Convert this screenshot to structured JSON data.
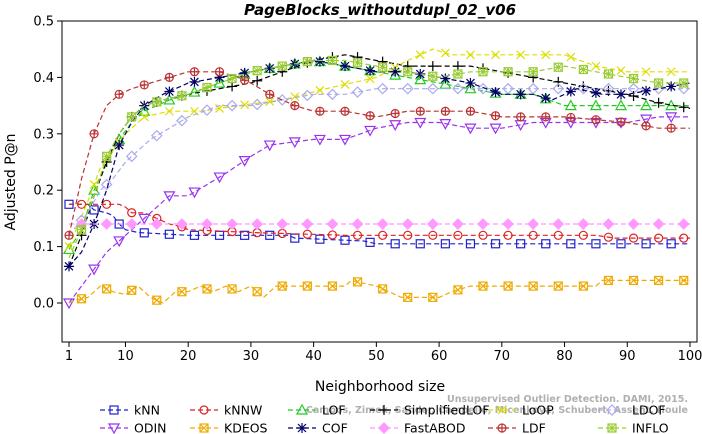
{
  "chart_data": {
    "type": "line",
    "title": "PageBlocks_withoutdupl_02_v06",
    "xlabel": "Neighborhood size",
    "ylabel": "Adjusted P@n",
    "xlim": [
      1,
      100
    ],
    "ylim": [
      -0.02,
      0.5
    ],
    "x_ticks": [
      1,
      10,
      20,
      30,
      40,
      50,
      60,
      70,
      80,
      90,
      100
    ],
    "y_ticks": [
      0.0,
      0.1,
      0.2,
      0.3,
      0.4,
      0.5
    ],
    "x_tick_labels": [
      "1",
      "10",
      "20",
      "30",
      "40",
      "50",
      "60",
      "70",
      "80",
      "90",
      "100"
    ],
    "y_tick_labels": [
      "0.0",
      "0.1",
      "0.2",
      "0.3",
      "0.4",
      "0.5"
    ],
    "grid": false,
    "legend_position": "bottom",
    "credit": [
      "Campos, Zimek, Sander, Campello, Micenkova, Schubert, Assent, Houle",
      "Unsupervised Outlier Detection. DAMI, 2015."
    ],
    "series": [
      {
        "name": "kNN",
        "color": "#2222cc",
        "marker": "square",
        "dash": "dash",
        "points": [
          [
            1,
            0.175
          ],
          [
            4,
            0.175
          ],
          [
            5,
            0.165
          ],
          [
            7,
            0.16
          ],
          [
            8,
            0.155
          ],
          [
            9,
            0.14
          ],
          [
            10,
            0.13
          ],
          [
            12,
            0.125
          ],
          [
            20,
            0.12
          ],
          [
            36,
            0.12
          ],
          [
            37,
            0.115
          ],
          [
            48,
            0.11
          ],
          [
            50,
            0.105
          ],
          [
            100,
            0.105
          ]
        ]
      },
      {
        "name": "kNNW",
        "color": "#dd2222",
        "marker": "circle",
        "dash": "dash",
        "points": [
          [
            1,
            0.175
          ],
          [
            6,
            0.175
          ],
          [
            9,
            0.175
          ],
          [
            10,
            0.17
          ],
          [
            11,
            0.16
          ],
          [
            13,
            0.16
          ],
          [
            15,
            0.15
          ],
          [
            17,
            0.14
          ],
          [
            19,
            0.135
          ],
          [
            20,
            0.13
          ],
          [
            30,
            0.125
          ],
          [
            45,
            0.12
          ],
          [
            60,
            0.12
          ],
          [
            85,
            0.12
          ],
          [
            88,
            0.115
          ],
          [
            100,
            0.115
          ]
        ]
      },
      {
        "name": "LOF",
        "color": "#22cc22",
        "marker": "triangle",
        "dash": "dash",
        "points": [
          [
            1,
            0.095
          ],
          [
            3,
            0.13
          ],
          [
            5,
            0.2
          ],
          [
            7,
            0.25
          ],
          [
            9,
            0.29
          ],
          [
            11,
            0.32
          ],
          [
            13,
            0.34
          ],
          [
            15,
            0.35
          ],
          [
            17,
            0.36
          ],
          [
            20,
            0.37
          ],
          [
            25,
            0.39
          ],
          [
            30,
            0.41
          ],
          [
            35,
            0.42
          ],
          [
            40,
            0.43
          ],
          [
            45,
            0.42
          ],
          [
            50,
            0.41
          ],
          [
            55,
            0.4
          ],
          [
            60,
            0.39
          ],
          [
            65,
            0.38
          ],
          [
            70,
            0.37
          ],
          [
            75,
            0.37
          ],
          [
            80,
            0.35
          ],
          [
            90,
            0.35
          ],
          [
            100,
            0.35
          ]
        ]
      },
      {
        "name": "SimplifiedLOF",
        "color": "#000000",
        "marker": "plus",
        "dash": "dash",
        "points": [
          [
            1,
            0.065
          ],
          [
            3,
            0.12
          ],
          [
            5,
            0.19
          ],
          [
            7,
            0.25
          ],
          [
            9,
            0.3
          ],
          [
            11,
            0.33
          ],
          [
            13,
            0.35
          ],
          [
            16,
            0.36
          ],
          [
            20,
            0.37
          ],
          [
            25,
            0.38
          ],
          [
            30,
            0.39
          ],
          [
            35,
            0.41
          ],
          [
            40,
            0.43
          ],
          [
            45,
            0.44
          ],
          [
            50,
            0.43
          ],
          [
            55,
            0.42
          ],
          [
            60,
            0.42
          ],
          [
            65,
            0.42
          ],
          [
            70,
            0.41
          ],
          [
            75,
            0.4
          ],
          [
            80,
            0.39
          ],
          [
            85,
            0.38
          ],
          [
            90,
            0.37
          ],
          [
            95,
            0.355
          ],
          [
            100,
            0.345
          ]
        ]
      },
      {
        "name": "LoOP",
        "color": "#dddd00",
        "marker": "x",
        "dash": "dash",
        "points": [
          [
            1,
            0.1
          ],
          [
            4,
            0.18
          ],
          [
            6,
            0.24
          ],
          [
            8,
            0.27
          ],
          [
            10,
            0.3
          ],
          [
            13,
            0.33
          ],
          [
            17,
            0.34
          ],
          [
            22,
            0.34
          ],
          [
            28,
            0.35
          ],
          [
            35,
            0.36
          ],
          [
            42,
            0.38
          ],
          [
            50,
            0.4
          ],
          [
            55,
            0.43
          ],
          [
            59,
            0.45
          ],
          [
            62,
            0.44
          ],
          [
            70,
            0.44
          ],
          [
            80,
            0.44
          ],
          [
            85,
            0.42
          ],
          [
            90,
            0.41
          ],
          [
            100,
            0.41
          ]
        ]
      },
      {
        "name": "LDOF",
        "color": "#aaaaee",
        "marker": "diamond",
        "dash": "dash",
        "points": [
          [
            1,
            0.12
          ],
          [
            4,
            0.16
          ],
          [
            6,
            0.2
          ],
          [
            8,
            0.22
          ],
          [
            10,
            0.25
          ],
          [
            12,
            0.27
          ],
          [
            14,
            0.29
          ],
          [
            17,
            0.31
          ],
          [
            20,
            0.33
          ],
          [
            25,
            0.35
          ],
          [
            30,
            0.35
          ],
          [
            35,
            0.36
          ],
          [
            40,
            0.37
          ],
          [
            45,
            0.37
          ],
          [
            50,
            0.38
          ],
          [
            55,
            0.38
          ],
          [
            60,
            0.38
          ],
          [
            65,
            0.38
          ],
          [
            70,
            0.38
          ],
          [
            75,
            0.38
          ],
          [
            80,
            0.38
          ],
          [
            90,
            0.38
          ],
          [
            100,
            0.38
          ]
        ]
      },
      {
        "name": "ODIN",
        "color": "#9933ee",
        "marker": "triangle-down",
        "dash": "dash",
        "points": [
          [
            1,
            0.0
          ],
          [
            3,
            0.03
          ],
          [
            5,
            0.06
          ],
          [
            7,
            0.09
          ],
          [
            9,
            0.11
          ],
          [
            11,
            0.13
          ],
          [
            13,
            0.15
          ],
          [
            15,
            0.17
          ],
          [
            17,
            0.19
          ],
          [
            20,
            0.19
          ],
          [
            23,
            0.21
          ],
          [
            26,
            0.23
          ],
          [
            30,
            0.26
          ],
          [
            33,
            0.28
          ],
          [
            40,
            0.29
          ],
          [
            45,
            0.29
          ],
          [
            50,
            0.31
          ],
          [
            55,
            0.32
          ],
          [
            60,
            0.32
          ],
          [
            65,
            0.31
          ],
          [
            70,
            0.31
          ],
          [
            75,
            0.32
          ],
          [
            80,
            0.32
          ],
          [
            90,
            0.32
          ],
          [
            95,
            0.33
          ],
          [
            100,
            0.33
          ]
        ]
      },
      {
        "name": "KDEOS",
        "color": "#eeaa00",
        "marker": "square-x",
        "dash": "dash",
        "points": [
          [
            1,
            0.0
          ],
          [
            2,
            0.005
          ],
          [
            4,
            0.01
          ],
          [
            6,
            0.03
          ],
          [
            8,
            0.02
          ],
          [
            10,
            0.015
          ],
          [
            12,
            0.03
          ],
          [
            14,
            0.01
          ],
          [
            16,
            0.0
          ],
          [
            18,
            0.02
          ],
          [
            20,
            0.02
          ],
          [
            22,
            0.03
          ],
          [
            24,
            0.02
          ],
          [
            26,
            0.03
          ],
          [
            28,
            0.02
          ],
          [
            30,
            0.03
          ],
          [
            32,
            0.01
          ],
          [
            34,
            0.03
          ],
          [
            40,
            0.03
          ],
          [
            45,
            0.03
          ],
          [
            46,
            0.04
          ],
          [
            50,
            0.03
          ],
          [
            52,
            0.02
          ],
          [
            54,
            0.01
          ],
          [
            60,
            0.01
          ],
          [
            62,
            0.02
          ],
          [
            65,
            0.03
          ],
          [
            70,
            0.03
          ],
          [
            80,
            0.03
          ],
          [
            85,
            0.03
          ],
          [
            86,
            0.04
          ],
          [
            100,
            0.04
          ]
        ]
      },
      {
        "name": "COF",
        "color": "#000066",
        "marker": "asterisk",
        "dash": "dash",
        "points": [
          [
            1,
            0.065
          ],
          [
            3,
            0.09
          ],
          [
            5,
            0.14
          ],
          [
            7,
            0.2
          ],
          [
            9,
            0.28
          ],
          [
            11,
            0.32
          ],
          [
            13,
            0.35
          ],
          [
            16,
            0.37
          ],
          [
            20,
            0.39
          ],
          [
            25,
            0.4
          ],
          [
            30,
            0.41
          ],
          [
            35,
            0.42
          ],
          [
            40,
            0.43
          ],
          [
            45,
            0.42
          ],
          [
            50,
            0.41
          ],
          [
            55,
            0.41
          ],
          [
            60,
            0.4
          ],
          [
            65,
            0.39
          ],
          [
            70,
            0.37
          ],
          [
            75,
            0.37
          ],
          [
            78,
            0.36
          ],
          [
            82,
            0.38
          ],
          [
            86,
            0.37
          ],
          [
            90,
            0.37
          ],
          [
            95,
            0.38
          ],
          [
            100,
            0.39
          ]
        ]
      },
      {
        "name": "FastABOD",
        "color": "#ff99ff",
        "marker": "diamond-filled",
        "dash": "dash",
        "points": [
          [
            1,
            0.14
          ],
          [
            10,
            0.14
          ],
          [
            20,
            0.14
          ],
          [
            30,
            0.14
          ],
          [
            40,
            0.14
          ],
          [
            50,
            0.14
          ],
          [
            60,
            0.14
          ],
          [
            70,
            0.14
          ],
          [
            80,
            0.14
          ],
          [
            90,
            0.14
          ],
          [
            100,
            0.14
          ]
        ]
      },
      {
        "name": "LDF",
        "color": "#bb3333",
        "marker": "circle-plus",
        "dash": "dash",
        "points": [
          [
            1,
            0.12
          ],
          [
            3,
            0.22
          ],
          [
            5,
            0.3
          ],
          [
            7,
            0.35
          ],
          [
            9,
            0.37
          ],
          [
            11,
            0.38
          ],
          [
            14,
            0.39
          ],
          [
            17,
            0.4
          ],
          [
            20,
            0.41
          ],
          [
            25,
            0.41
          ],
          [
            28,
            0.4
          ],
          [
            30,
            0.39
          ],
          [
            33,
            0.37
          ],
          [
            37,
            0.35
          ],
          [
            40,
            0.34
          ],
          [
            45,
            0.34
          ],
          [
            50,
            0.33
          ],
          [
            55,
            0.34
          ],
          [
            60,
            0.34
          ],
          [
            65,
            0.34
          ],
          [
            70,
            0.33
          ],
          [
            75,
            0.33
          ],
          [
            80,
            0.33
          ],
          [
            90,
            0.32
          ],
          [
            95,
            0.31
          ],
          [
            100,
            0.31
          ]
        ]
      },
      {
        "name": "INFLO",
        "color": "#99cc33",
        "marker": "hash-square",
        "dash": "dash",
        "points": [
          [
            1,
            0.08
          ],
          [
            3,
            0.13
          ],
          [
            5,
            0.19
          ],
          [
            7,
            0.26
          ],
          [
            9,
            0.3
          ],
          [
            11,
            0.33
          ],
          [
            13,
            0.35
          ],
          [
            16,
            0.36
          ],
          [
            20,
            0.37
          ],
          [
            25,
            0.39
          ],
          [
            30,
            0.41
          ],
          [
            35,
            0.42
          ],
          [
            40,
            0.43
          ],
          [
            45,
            0.43
          ],
          [
            50,
            0.42
          ],
          [
            55,
            0.41
          ],
          [
            60,
            0.4
          ],
          [
            65,
            0.41
          ],
          [
            70,
            0.41
          ],
          [
            75,
            0.41
          ],
          [
            80,
            0.42
          ],
          [
            85,
            0.41
          ],
          [
            90,
            0.4
          ],
          [
            95,
            0.39
          ],
          [
            100,
            0.39
          ]
        ]
      }
    ]
  }
}
